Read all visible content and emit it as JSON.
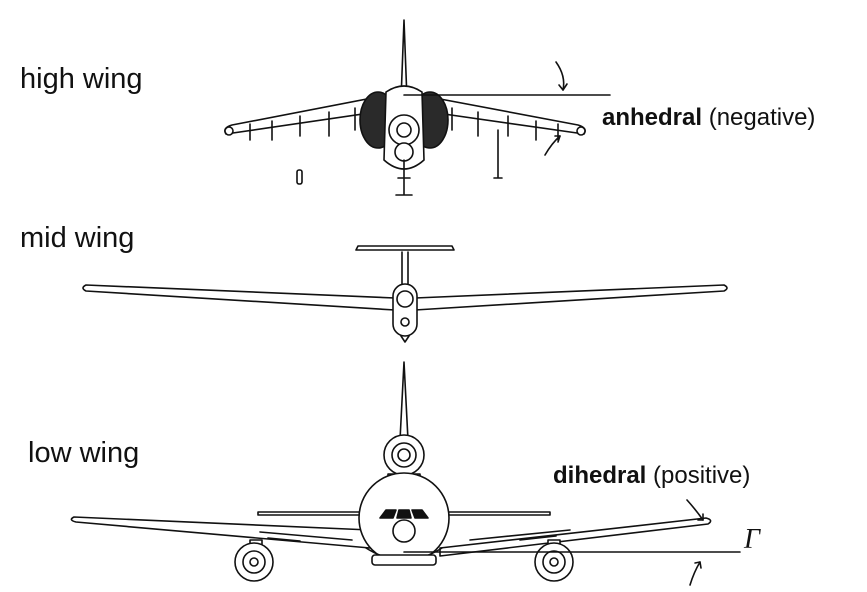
{
  "labels": {
    "high_wing": "high wing",
    "mid_wing": "mid wing",
    "low_wing": "low wing"
  },
  "annotations": {
    "anhedral_bold": "anhedral",
    "anhedral_rest": " (negative)",
    "dihedral_bold": "dihedral",
    "dihedral_rest": " (positive)",
    "gamma_symbol": "Γ"
  }
}
